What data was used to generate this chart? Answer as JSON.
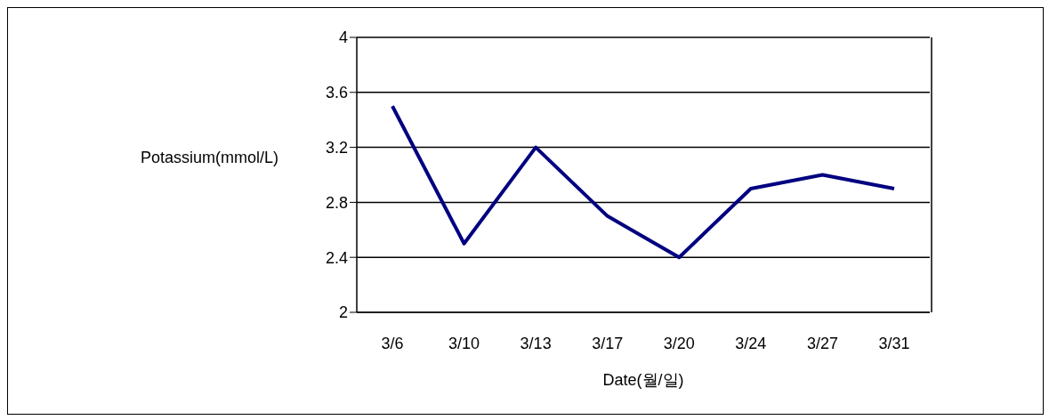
{
  "chart_data": {
    "type": "line",
    "xlabel": "Date(월/일)",
    "ylabel": "Potassium(mmol/L)",
    "categories": [
      "3/6",
      "3/10",
      "3/13",
      "3/17",
      "3/20",
      "3/24",
      "3/27",
      "3/31"
    ],
    "series": [
      {
        "color": "#000080",
        "values": [
          3.5,
          2.5,
          3.2,
          2.7,
          2.4,
          2.9,
          3.0,
          2.9
        ]
      }
    ],
    "ylim": [
      2,
      4
    ],
    "yticks": [
      2,
      2.4,
      2.8,
      3.2,
      3.6,
      4
    ],
    "grid": "y",
    "marker": "none",
    "line_style": "solid",
    "legend": false
  }
}
